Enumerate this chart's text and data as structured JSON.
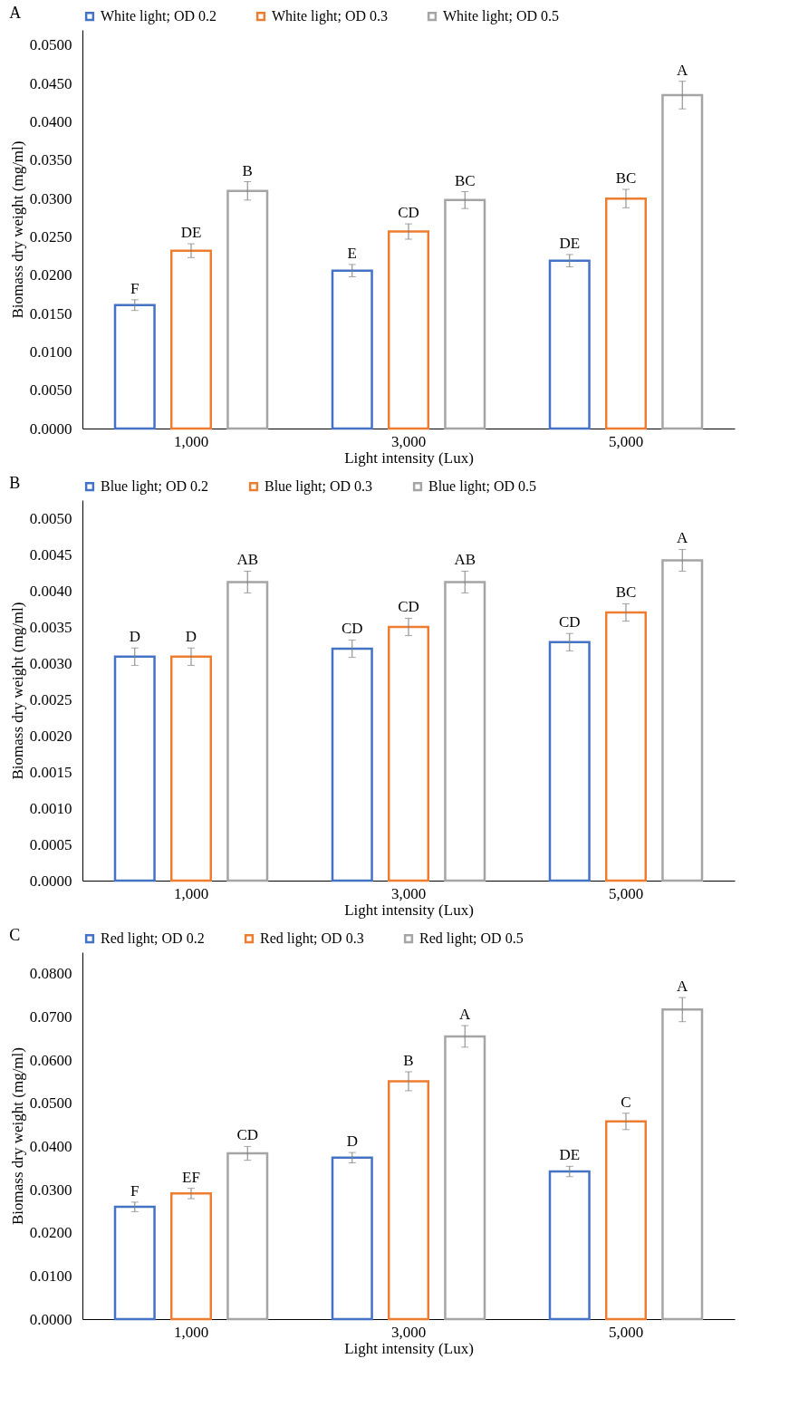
{
  "chart_data": [
    {
      "type": "bar",
      "title": "A",
      "xlabel": "Light intensity (Lux)",
      "ylabel": "Biomass dry weight (mg/ml)",
      "categories": [
        "1,000",
        "3,000",
        "5,000"
      ],
      "series": [
        {
          "name": "White light; OD 0.2",
          "color": "#4472c4",
          "values": [
            0.0161,
            0.0206,
            0.0219
          ],
          "errors": [
            0.0007,
            0.0008,
            0.0008
          ],
          "value_labels": [
            "F",
            "E",
            "DE"
          ]
        },
        {
          "name": "White light; OD 0.3",
          "color": "#ed7d31",
          "values": [
            0.0232,
            0.0257,
            0.03
          ],
          "errors": [
            0.0009,
            0.001,
            0.0012
          ],
          "value_labels": [
            "DE",
            "CD",
            "BC"
          ]
        },
        {
          "name": "White light; OD 0.5",
          "color": "#a5a5a5",
          "values": [
            0.031,
            0.0298,
            0.0435
          ],
          "errors": [
            0.0012,
            0.0011,
            0.0018
          ],
          "value_labels": [
            "B",
            "BC",
            "A"
          ]
        }
      ],
      "ylim": [
        0,
        0.052
      ],
      "yticks": [
        {
          "value": 0,
          "label": "0.0000"
        },
        {
          "value": 0.005,
          "label": "0.0050"
        },
        {
          "value": 0.01,
          "label": "0.0100"
        },
        {
          "value": 0.015,
          "label": "0.0150"
        },
        {
          "value": 0.02,
          "label": "0.0200"
        },
        {
          "value": 0.025,
          "label": "0.0250"
        },
        {
          "value": 0.03,
          "label": "0.0300"
        },
        {
          "value": 0.035,
          "label": "0.0350"
        },
        {
          "value": 0.04,
          "label": "0.0400"
        },
        {
          "value": 0.045,
          "label": "0.0450"
        },
        {
          "value": 0.05,
          "label": "0.0500"
        }
      ],
      "legend": "top"
    },
    {
      "type": "bar",
      "title": "B",
      "xlabel": "Light intensity (Lux)",
      "ylabel": "Biomass dry weight (mg/ml)",
      "categories": [
        "1,000",
        "3,000",
        "5,000"
      ],
      "series": [
        {
          "name": "Blue light; OD 0.2",
          "color": "#4472c4",
          "values": [
            0.00309,
            0.0032,
            0.00329
          ],
          "errors": [
            0.00012,
            0.00012,
            0.00012
          ],
          "value_labels": [
            "D",
            "CD",
            "CD"
          ]
        },
        {
          "name": "Blue light; OD 0.3",
          "color": "#ed7d31",
          "values": [
            0.00309,
            0.0035,
            0.0037
          ],
          "errors": [
            0.00012,
            0.00012,
            0.00012
          ],
          "value_labels": [
            "D",
            "CD",
            "BC"
          ]
        },
        {
          "name": "Blue light; OD 0.5",
          "color": "#a5a5a5",
          "values": [
            0.00412,
            0.00412,
            0.00442
          ],
          "errors": [
            0.00015,
            0.00015,
            0.00015
          ],
          "value_labels": [
            "AB",
            "AB",
            "A"
          ]
        }
      ],
      "ylim": [
        0,
        0.00525
      ],
      "yticks": [
        {
          "value": 0,
          "label": "0.0000"
        },
        {
          "value": 0.0005,
          "label": "0.0005"
        },
        {
          "value": 0.001,
          "label": "0.0010"
        },
        {
          "value": 0.0015,
          "label": "0.0015"
        },
        {
          "value": 0.002,
          "label": "0.0020"
        },
        {
          "value": 0.0025,
          "label": "0.0025"
        },
        {
          "value": 0.003,
          "label": "0.0030"
        },
        {
          "value": 0.0035,
          "label": "0.0035"
        },
        {
          "value": 0.004,
          "label": "0.0040"
        },
        {
          "value": 0.0045,
          "label": "0.0045"
        },
        {
          "value": 0.005,
          "label": "0.0050"
        }
      ],
      "legend": "top"
    },
    {
      "type": "bar",
      "title": "C",
      "xlabel": "Light intensity (Lux)",
      "ylabel": "Biomass dry weight (mg/ml)",
      "categories": [
        "1,000",
        "3,000",
        "5,000"
      ],
      "series": [
        {
          "name": "Red light; OD 0.2",
          "color": "#4472c4",
          "values": [
            0.026,
            0.0374,
            0.0342
          ],
          "errors": [
            0.0011,
            0.0012,
            0.0012
          ],
          "value_labels": [
            "F",
            "D",
            "DE"
          ]
        },
        {
          "name": "Red light; OD 0.3",
          "color": "#ed7d31",
          "values": [
            0.0291,
            0.0551,
            0.0458
          ],
          "errors": [
            0.0012,
            0.0022,
            0.0019
          ],
          "value_labels": [
            "EF",
            "B",
            "C"
          ]
        },
        {
          "name": "Red light; OD 0.5",
          "color": "#a5a5a5",
          "values": [
            0.0384,
            0.0655,
            0.0717
          ],
          "errors": [
            0.0016,
            0.0025,
            0.0028
          ],
          "value_labels": [
            "CD",
            "A",
            "A"
          ]
        }
      ],
      "ylim": [
        0,
        0.085
      ],
      "yticks": [
        {
          "value": 0,
          "label": "0.0000"
        },
        {
          "value": 0.01,
          "label": "0.0100"
        },
        {
          "value": 0.02,
          "label": "0.0200"
        },
        {
          "value": 0.03,
          "label": "0.0300"
        },
        {
          "value": 0.04,
          "label": "0.0400"
        },
        {
          "value": 0.05,
          "label": "0.0500"
        },
        {
          "value": 0.06,
          "label": "0.0600"
        },
        {
          "value": 0.07,
          "label": "0.0700"
        },
        {
          "value": 0.08,
          "label": "0.0800"
        }
      ],
      "legend": "top"
    }
  ]
}
